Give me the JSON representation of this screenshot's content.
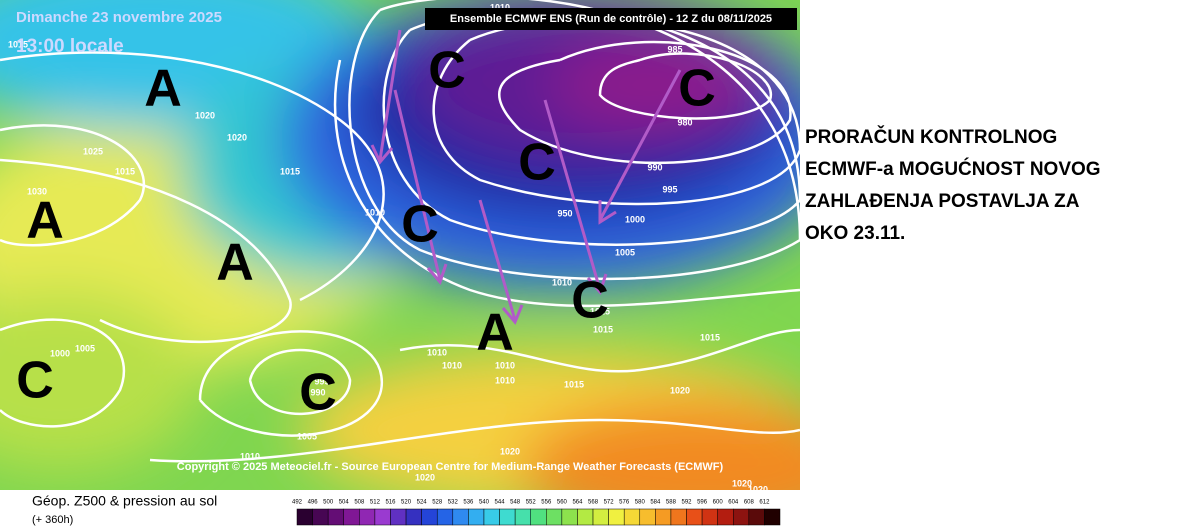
{
  "map": {
    "date": "Dimanche 23 novembre 2025",
    "time": "13:00 locale",
    "run": "Ensemble ECMWF ENS  (Run de contrôle)  -  12 Z du 08/11/2025",
    "copyright": "Copyright © 2025 Meteociel.fr - Source European Centre for Medium-Range Weather Forecasts (ECMWF)",
    "isobar_labels": [
      "1010",
      "1015",
      "1020",
      "1020",
      "1025",
      "1015",
      "1030",
      "1015",
      "1010",
      "985",
      "980",
      "990",
      "995",
      "950",
      "1000",
      "1005",
      "1010",
      "1015",
      "1015",
      "1015",
      "1005",
      "1000",
      "995",
      "990",
      "1010",
      "1010",
      "1010",
      "1010",
      "1015",
      "1020",
      "1005",
      "1010",
      "1020",
      "1020",
      "1020",
      "1020"
    ],
    "centers": [
      "A",
      "C",
      "C",
      "C",
      "A",
      "C",
      "A",
      "C",
      "A",
      "C",
      "C"
    ]
  },
  "legend": {
    "title": "Géop. Z500 & pression au sol",
    "subtitle": "(+ 360h)",
    "scale": [
      "492",
      "496",
      "500",
      "504",
      "508",
      "512",
      "516",
      "520",
      "524",
      "528",
      "532",
      "536",
      "540",
      "544",
      "548",
      "552",
      "556",
      "560",
      "564",
      "568",
      "572",
      "576",
      "580",
      "584",
      "588",
      "592",
      "596",
      "600",
      "604",
      "608",
      "612"
    ]
  },
  "annotation": {
    "lines": [
      "PRORAČUN KONTROLNOG",
      "ECMWF-a MOGUĆNOST NOVOG",
      "ZAHLAĐENJA POSTAVLJA ZA",
      "OKO 23.11."
    ]
  }
}
